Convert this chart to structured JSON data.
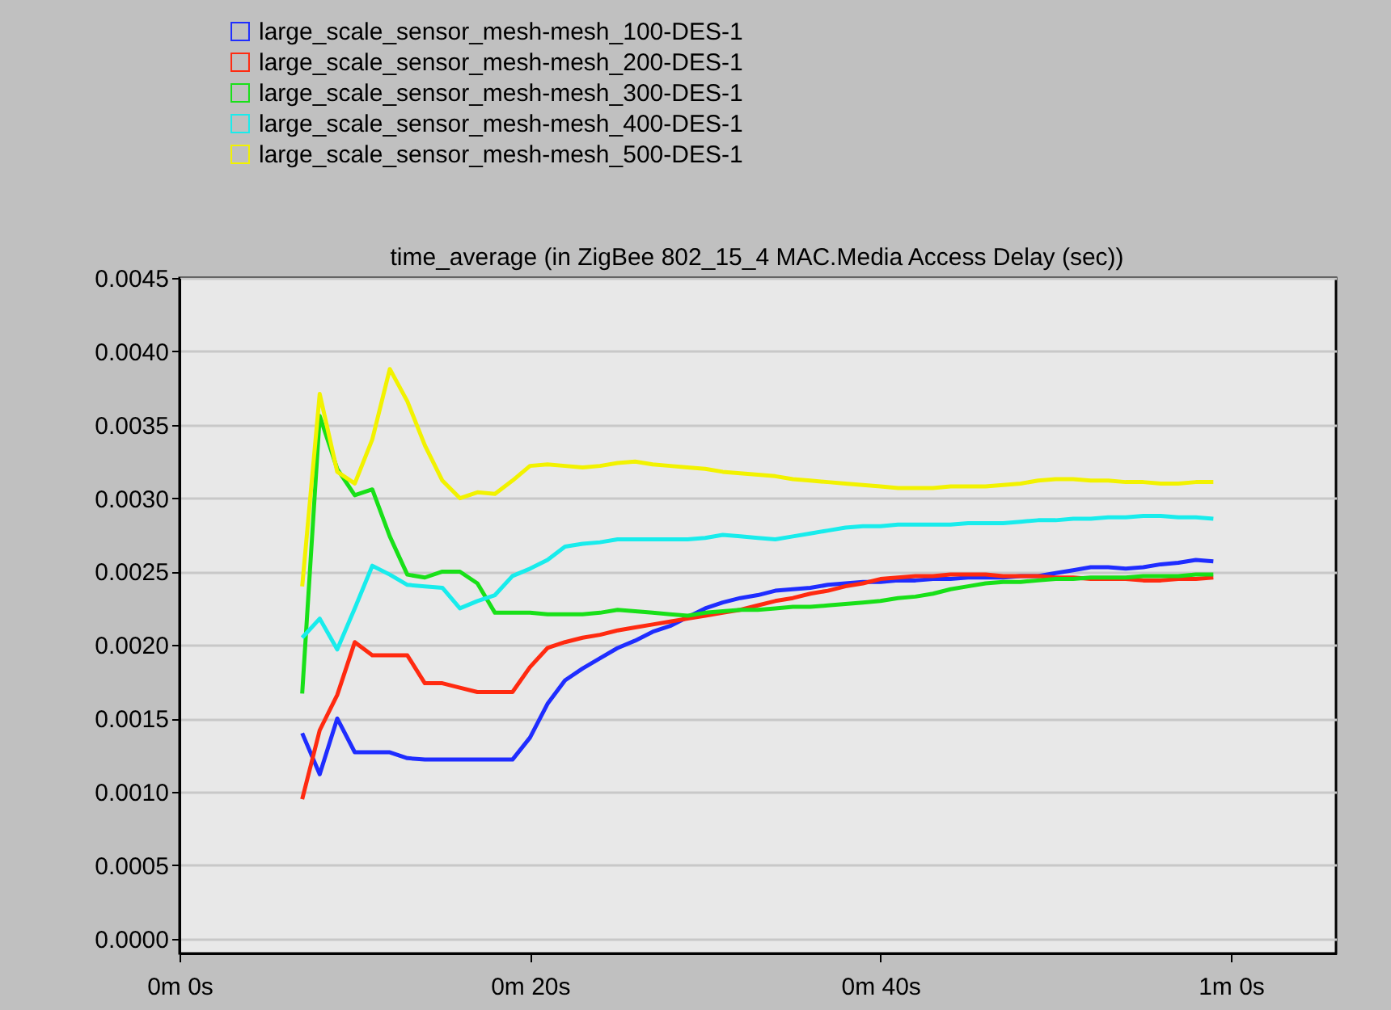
{
  "chart_data": {
    "type": "line",
    "title": "time_average (in ZigBee 802_15_4 MAC.Media Access Delay (sec))",
    "legend": "top",
    "grid": "y",
    "marker": "none",
    "line_style": "solid",
    "categories": [
      "0m 0s",
      null,
      null,
      null,
      null,
      null,
      null,
      null,
      null,
      null,
      null,
      null,
      null,
      null,
      null,
      null,
      null,
      null,
      null,
      null,
      "0m 20s",
      null,
      null,
      null,
      null,
      null,
      null,
      null,
      null,
      null,
      null,
      null,
      null,
      null,
      null,
      null,
      null,
      null,
      null,
      null,
      "0m 40s",
      null,
      null,
      null,
      null,
      null,
      null,
      null,
      null,
      null,
      null,
      null,
      null,
      null,
      null,
      null,
      null,
      null,
      null,
      null,
      "1m 0s",
      null,
      null,
      null,
      null,
      null,
      null
    ],
    "ylim": [
      -0.0001,
      0.0045
    ],
    "yticks": [
      {
        "value": 0,
        "label": "0.0000"
      },
      {
        "value": 0.0005,
        "label": "0.0005"
      },
      {
        "value": 0.001,
        "label": "0.0010"
      },
      {
        "value": 0.0015,
        "label": "0.0015"
      },
      {
        "value": 0.002,
        "label": "0.0020"
      },
      {
        "value": 0.0025,
        "label": "0.0025"
      },
      {
        "value": 0.003,
        "label": "0.0030"
      },
      {
        "value": 0.0035,
        "label": "0.0035"
      },
      {
        "value": 0.004,
        "label": "0.0040"
      },
      {
        "value": 0.0045,
        "label": "0.0045"
      }
    ],
    "series": [
      {
        "name": "large_scale_sensor_mesh-mesh_100-DES-1",
        "color": "#1f2dff",
        "values": [
          null,
          null,
          null,
          null,
          null,
          null,
          null,
          0.0014,
          0.00112,
          0.0015,
          0.00127,
          0.00127,
          0.00127,
          0.00123,
          0.00122,
          0.00122,
          0.00122,
          0.00122,
          0.00122,
          0.00122,
          0.00137,
          0.0016,
          0.00176,
          0.00184,
          0.00191,
          0.00198,
          0.00203,
          0.00209,
          0.00213,
          0.00219,
          0.00225,
          0.00229,
          0.00232,
          0.00234,
          0.00237,
          0.00238,
          0.00239,
          0.00241,
          0.00242,
          0.00243,
          0.00243,
          0.00244,
          0.00244,
          0.00245,
          0.00245,
          0.00246,
          0.00246,
          0.00246,
          0.00247,
          0.00247,
          0.00249,
          0.00251,
          0.00253,
          0.00253,
          0.00252,
          0.00253,
          0.00255,
          0.00256,
          0.00258,
          0.00257,
          null,
          null,
          null,
          null,
          null,
          null,
          null
        ]
      },
      {
        "name": "large_scale_sensor_mesh-mesh_200-DES-1",
        "color": "#ff2a10",
        "values": [
          null,
          null,
          null,
          null,
          null,
          null,
          null,
          0.00095,
          0.00142,
          0.00166,
          0.00202,
          0.00193,
          0.00193,
          0.00193,
          0.00174,
          0.00174,
          0.00171,
          0.00168,
          0.00168,
          0.00168,
          0.00185,
          0.00198,
          0.00202,
          0.00205,
          0.00207,
          0.0021,
          0.00212,
          0.00214,
          0.00216,
          0.00218,
          0.0022,
          0.00222,
          0.00224,
          0.00227,
          0.0023,
          0.00232,
          0.00235,
          0.00237,
          0.0024,
          0.00242,
          0.00245,
          0.00246,
          0.00247,
          0.00247,
          0.00248,
          0.00248,
          0.00248,
          0.00247,
          0.00247,
          0.00247,
          0.00246,
          0.00246,
          0.00245,
          0.00245,
          0.00245,
          0.00244,
          0.00244,
          0.00245,
          0.00245,
          0.00246,
          null,
          null,
          null,
          null,
          null,
          null,
          null
        ]
      },
      {
        "name": "large_scale_sensor_mesh-mesh_300-DES-1",
        "color": "#18e018",
        "values": [
          null,
          null,
          null,
          null,
          null,
          null,
          null,
          0.00167,
          0.00356,
          0.0032,
          0.00302,
          0.00306,
          0.00274,
          0.00248,
          0.00246,
          0.0025,
          0.0025,
          0.00242,
          0.00222,
          0.00222,
          0.00222,
          0.00221,
          0.00221,
          0.00221,
          0.00222,
          0.00224,
          0.00223,
          0.00222,
          0.00221,
          0.0022,
          0.00222,
          0.00223,
          0.00224,
          0.00224,
          0.00225,
          0.00226,
          0.00226,
          0.00227,
          0.00228,
          0.00229,
          0.0023,
          0.00232,
          0.00233,
          0.00235,
          0.00238,
          0.0024,
          0.00242,
          0.00243,
          0.00243,
          0.00244,
          0.00245,
          0.00245,
          0.00246,
          0.00246,
          0.00246,
          0.00247,
          0.00247,
          0.00247,
          0.00248,
          0.00248,
          null,
          null,
          null,
          null,
          null,
          null,
          null
        ]
      },
      {
        "name": "large_scale_sensor_mesh-mesh_400-DES-1",
        "color": "#18ecec",
        "values": [
          null,
          null,
          null,
          null,
          null,
          null,
          null,
          0.00205,
          0.00218,
          0.00197,
          0.00225,
          0.00254,
          0.00248,
          0.00241,
          0.0024,
          0.00239,
          0.00225,
          0.0023,
          0.00234,
          0.00247,
          0.00252,
          0.00258,
          0.00267,
          0.00269,
          0.0027,
          0.00272,
          0.00272,
          0.00272,
          0.00272,
          0.00272,
          0.00273,
          0.00275,
          0.00274,
          0.00273,
          0.00272,
          0.00274,
          0.00276,
          0.00278,
          0.0028,
          0.00281,
          0.00281,
          0.00282,
          0.00282,
          0.00282,
          0.00282,
          0.00283,
          0.00283,
          0.00283,
          0.00284,
          0.00285,
          0.00285,
          0.00286,
          0.00286,
          0.00287,
          0.00287,
          0.00288,
          0.00288,
          0.00287,
          0.00287,
          0.00286,
          null,
          null,
          null,
          null,
          null,
          null,
          null
        ]
      },
      {
        "name": "large_scale_sensor_mesh-mesh_500-DES-1",
        "color": "#f2f200",
        "values": [
          null,
          null,
          null,
          null,
          null,
          null,
          null,
          0.0024,
          0.00371,
          0.00318,
          0.0031,
          0.0034,
          0.00388,
          0.00366,
          0.00336,
          0.00312,
          0.003,
          0.00304,
          0.00303,
          0.00312,
          0.00322,
          0.00323,
          0.00322,
          0.00321,
          0.00322,
          0.00324,
          0.00325,
          0.00323,
          0.00322,
          0.00321,
          0.0032,
          0.00318,
          0.00317,
          0.00316,
          0.00315,
          0.00313,
          0.00312,
          0.00311,
          0.0031,
          0.00309,
          0.00308,
          0.00307,
          0.00307,
          0.00307,
          0.00308,
          0.00308,
          0.00308,
          0.00309,
          0.0031,
          0.00312,
          0.00313,
          0.00313,
          0.00312,
          0.00312,
          0.00311,
          0.00311,
          0.0031,
          0.0031,
          0.00311,
          0.00311,
          null,
          null,
          null,
          null,
          null,
          null,
          null
        ]
      }
    ]
  }
}
